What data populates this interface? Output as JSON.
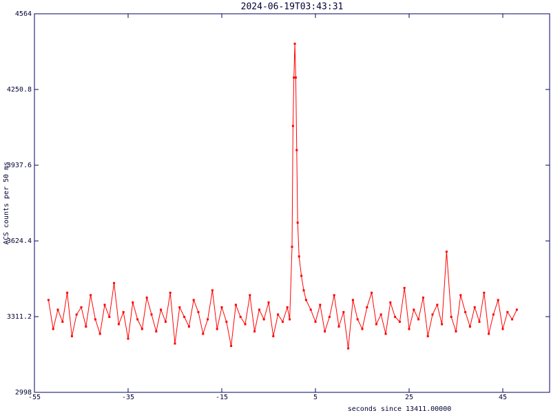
{
  "chart_data": {
    "type": "line",
    "title": "2024-06-19T03:43:31",
    "xlabel": "seconds since 13411.00000",
    "ylabel": "ACS counts per 50 ms",
    "x": [
      -52,
      -51,
      -50,
      -49,
      -48,
      -47,
      -46,
      -45,
      -44,
      -43,
      -42,
      -41,
      -40,
      -39,
      -38,
      -37,
      -36,
      -35,
      -34,
      -33,
      -32,
      -31,
      -30,
      -29,
      -28,
      -27,
      -26,
      -25,
      -24,
      -23,
      -22,
      -21,
      -20,
      -19,
      -18,
      -17,
      -16,
      -15,
      -14,
      -13,
      -12,
      -11,
      -10,
      -9,
      -8,
      -7,
      -6,
      -5,
      -4,
      -3,
      -2,
      -1,
      -0.5,
      0,
      0.2,
      0.4,
      0.6,
      0.8,
      1.0,
      1.2,
      1.5,
      2,
      2.5,
      3,
      4,
      5,
      6,
      7,
      8,
      9,
      10,
      11,
      12,
      13,
      14,
      15,
      16,
      17,
      18,
      19,
      20,
      21,
      22,
      23,
      24,
      25,
      26,
      27,
      28,
      29,
      30,
      31,
      32,
      33,
      34,
      35,
      36,
      37,
      38,
      39,
      40,
      41,
      42,
      43,
      44,
      45,
      46,
      47,
      48
    ],
    "series": [
      {
        "name": "ACS",
        "color": "#ff0000",
        "values": [
          3380,
          3260,
          3340,
          3290,
          3410,
          3230,
          3320,
          3350,
          3270,
          3400,
          3300,
          3240,
          3360,
          3310,
          3450,
          3280,
          3330,
          3220,
          3370,
          3300,
          3260,
          3390,
          3320,
          3250,
          3340,
          3290,
          3410,
          3200,
          3350,
          3310,
          3270,
          3380,
          3330,
          3240,
          3300,
          3420,
          3260,
          3350,
          3290,
          3190,
          3360,
          3310,
          3280,
          3400,
          3250,
          3340,
          3300,
          3370,
          3230,
          3320,
          3290,
          3350,
          3300,
          3600,
          4100,
          4300,
          4440,
          4300,
          4000,
          3700,
          3560,
          3480,
          3420,
          3380,
          3340,
          3290,
          3360,
          3250,
          3310,
          3400,
          3270,
          3330,
          3180,
          3380,
          3300,
          3260,
          3350,
          3410,
          3280,
          3320,
          3240,
          3370,
          3310,
          3290,
          3430,
          3260,
          3340,
          3300,
          3390,
          3230,
          3320,
          3360,
          3280,
          3580,
          3310,
          3250,
          3400,
          3330,
          3270,
          3350,
          3290,
          3410,
          3240,
          3320,
          3380,
          3260,
          3330,
          3300,
          3340
        ]
      }
    ],
    "xlim": [
      -55,
      55
    ],
    "xticks": [
      -55,
      -35,
      -15,
      5,
      25,
      45
    ],
    "ylim": [
      2998,
      4564
    ],
    "yticks": [
      2998,
      3311.2,
      3624.4,
      3937.6,
      4250.8,
      4564
    ]
  }
}
